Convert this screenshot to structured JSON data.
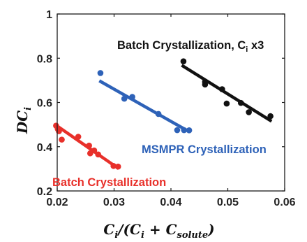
{
  "chart_data": {
    "type": "scatter",
    "xlim": [
      0.02,
      0.06
    ],
    "ylim": [
      0.2,
      1.0
    ],
    "x_ticks": [
      "0.02",
      "0.03",
      "0.04",
      "0.05",
      "0.06"
    ],
    "y_ticks": [
      "0.2",
      "0.4",
      "0.6",
      "0.8",
      "1"
    ],
    "grid": false,
    "ylabel": {
      "main": "DC",
      "sub": "i"
    },
    "xlabel": {
      "p1": "C",
      "p1sub": "i",
      "p2": "/(C",
      "p2sub": "i",
      "p3": " + C",
      "p3sub": "solute",
      "p4": ")"
    },
    "series": [
      {
        "annotation": "Batch Crystallization",
        "color": "#e8302a",
        "points": [
          [
            0.0198,
            0.495
          ],
          [
            0.0201,
            0.48
          ],
          [
            0.0203,
            0.47
          ],
          [
            0.0208,
            0.432
          ],
          [
            0.0237,
            0.445
          ],
          [
            0.0256,
            0.405
          ],
          [
            0.0258,
            0.37
          ],
          [
            0.0265,
            0.383
          ],
          [
            0.0272,
            0.365
          ],
          [
            0.0299,
            0.313
          ],
          [
            0.0307,
            0.31
          ]
        ],
        "fit": [
          [
            0.0198,
            0.497
          ],
          [
            0.0308,
            0.301
          ]
        ]
      },
      {
        "annotation": "MSMPR Crystallization",
        "color": "#2e62b8",
        "points": [
          [
            0.0276,
            0.733
          ],
          [
            0.0318,
            0.617
          ],
          [
            0.0332,
            0.625
          ],
          [
            0.0378,
            0.548
          ],
          [
            0.0411,
            0.475
          ],
          [
            0.0423,
            0.475
          ],
          [
            0.0432,
            0.474
          ]
        ],
        "fit": [
          [
            0.0274,
            0.698
          ],
          [
            0.0432,
            0.468
          ]
        ]
      },
      {
        "annotation": "Batch Crystallization, C",
        "annotation_sub": "i",
        "annotation_suffix": " x3",
        "color": "#111111",
        "points": [
          [
            0.0422,
            0.786
          ],
          [
            0.046,
            0.681
          ],
          [
            0.046,
            0.693
          ],
          [
            0.049,
            0.66
          ],
          [
            0.0498,
            0.595
          ],
          [
            0.0523,
            0.598
          ],
          [
            0.0537,
            0.556
          ],
          [
            0.0575,
            0.538
          ]
        ],
        "fit": [
          [
            0.0419,
            0.768
          ],
          [
            0.0577,
            0.515
          ]
        ]
      }
    ]
  }
}
